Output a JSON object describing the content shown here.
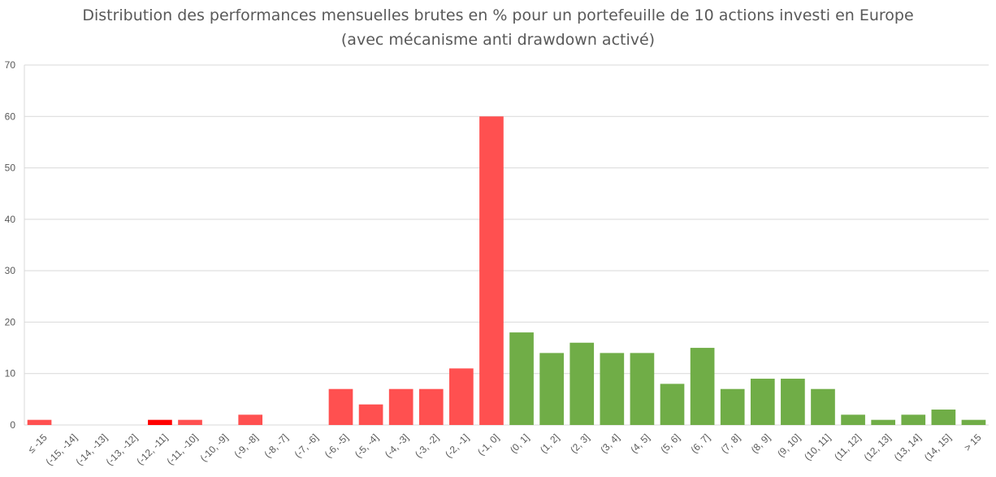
{
  "chart_data": {
    "type": "bar",
    "title": "Distribution des performances mensuelles brutes en % pour un portefeuille de 10 actions investi en Europe",
    "subtitle": "(avec mécanisme anti drawdown activé)",
    "xlabel": "",
    "ylabel": "",
    "ylim": [
      0,
      70
    ],
    "yticks": [
      "0",
      "10",
      "20",
      "30",
      "40",
      "50",
      "60",
      "70"
    ],
    "grid": true,
    "legend": "none",
    "categories": [
      "≤ -15",
      "(-15, -14]",
      "(-14, -13]",
      "(-13, -12]",
      "(-12, -11]",
      "(-11, -10]",
      "(-10, -9]",
      "(-9, -8]",
      "(-8, -7]",
      "(-7, -6]",
      "(-6, -5]",
      "(-5, -4]",
      "(-4, -3]",
      "(-3, -2]",
      "(-2, -1]",
      "(-1, 0]",
      "(0, 1]",
      "(1, 2]",
      "(2, 3]",
      "(3, 4]",
      "(4, 5]",
      "(5, 6]",
      "(6, 7]",
      "(7, 8]",
      "(8, 9]",
      "(9, 10]",
      "(10, 11]",
      "(11, 12]",
      "(12, 13]",
      "(13, 14]",
      "(14, 15]",
      "> 15"
    ],
    "values": [
      1,
      0,
      0,
      0,
      1,
      1,
      0,
      2,
      0,
      0,
      7,
      4,
      7,
      7,
      11,
      60,
      18,
      14,
      16,
      14,
      14,
      8,
      15,
      7,
      9,
      9,
      7,
      2,
      1,
      2,
      3,
      1
    ],
    "colors": {
      "negative": "#ff5050",
      "highlight": "#ff0000",
      "positive": "#70ad47",
      "grid": "#d9d9d9",
      "axis_text": "#595959"
    },
    "bar_color_keys": [
      "negative",
      "negative",
      "negative",
      "negative",
      "highlight",
      "negative",
      "negative",
      "negative",
      "negative",
      "negative",
      "negative",
      "negative",
      "negative",
      "negative",
      "negative",
      "negative",
      "positive",
      "positive",
      "positive",
      "positive",
      "positive",
      "positive",
      "positive",
      "positive",
      "positive",
      "positive",
      "positive",
      "positive",
      "positive",
      "positive",
      "positive",
      "positive"
    ]
  }
}
